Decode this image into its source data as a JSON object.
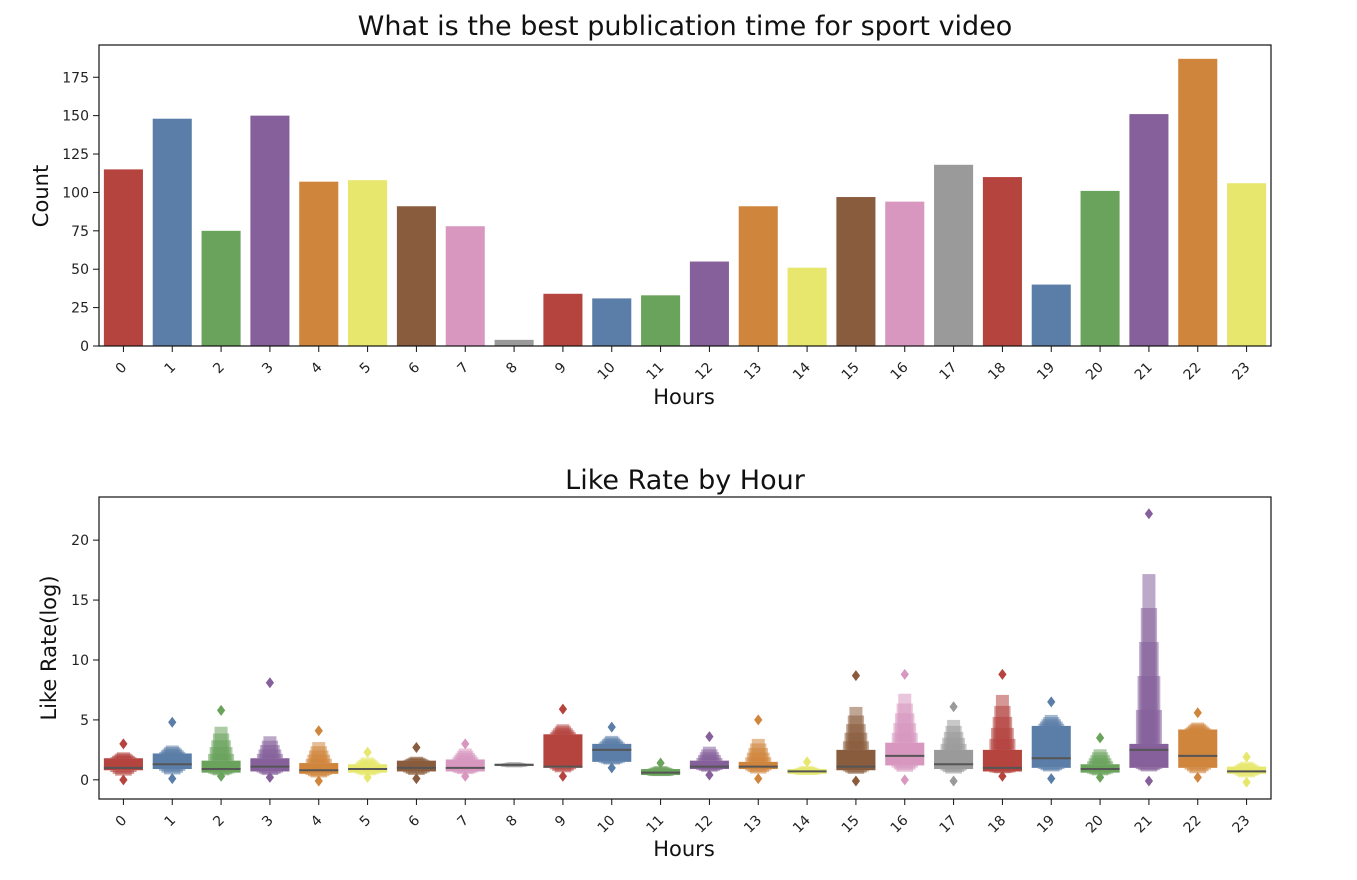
{
  "palette": [
    "#b5443f",
    "#5b7ea8",
    "#6aa35c",
    "#85609a",
    "#d0853d",
    "#e6e76c",
    "#8a5c3e",
    "#d797bf",
    "#9a9a9a"
  ],
  "chart_data": [
    {
      "type": "bar",
      "title": "What is the best publication time for sport video",
      "xlabel": "Hours",
      "ylabel": "Count",
      "categories": [
        "0",
        "1",
        "2",
        "3",
        "4",
        "5",
        "6",
        "7",
        "8",
        "9",
        "10",
        "11",
        "12",
        "13",
        "14",
        "15",
        "16",
        "17",
        "18",
        "19",
        "20",
        "21",
        "22",
        "23"
      ],
      "values": [
        115,
        148,
        75,
        150,
        107,
        108,
        91,
        78,
        4,
        34,
        31,
        33,
        55,
        91,
        51,
        97,
        94,
        118,
        110,
        40,
        101,
        151,
        187,
        106
      ],
      "ylim": [
        0,
        196
      ],
      "yticks": [
        0,
        25,
        50,
        75,
        100,
        125,
        150,
        175
      ],
      "grid": false
    },
    {
      "type": "boxen",
      "title": "Like Rate by Hour",
      "xlabel": "Hours",
      "ylabel": "Like Rate(log)",
      "categories": [
        "0",
        "1",
        "2",
        "3",
        "4",
        "5",
        "6",
        "7",
        "8",
        "9",
        "10",
        "11",
        "12",
        "13",
        "14",
        "15",
        "16",
        "17",
        "18",
        "19",
        "20",
        "21",
        "22",
        "23"
      ],
      "ylim": [
        -1.6,
        23.6
      ],
      "yticks": [
        0,
        5,
        10,
        15,
        20
      ],
      "grid": false,
      "series": [
        {
          "min": 0.2,
          "q1": 0.8,
          "median": 1.0,
          "q3": 1.8,
          "upper_whisker": 2.4,
          "outliers_high": [
            3.0
          ],
          "outliers_low": [
            0.0
          ]
        },
        {
          "min": 0.3,
          "q1": 0.9,
          "median": 1.3,
          "q3": 2.2,
          "upper_whisker": 3.0,
          "outliers_high": [
            4.8
          ],
          "outliers_low": [
            0.1
          ]
        },
        {
          "min": 0.3,
          "q1": 0.6,
          "median": 0.9,
          "q3": 1.6,
          "upper_whisker": 5.0,
          "outliers_high": [
            5.8
          ],
          "outliers_low": [
            0.3
          ]
        },
        {
          "min": 0.3,
          "q1": 0.7,
          "median": 1.1,
          "q3": 1.8,
          "upper_whisker": 4.0,
          "outliers_high": [
            8.1
          ],
          "outliers_low": [
            0.2
          ]
        },
        {
          "min": 0.1,
          "q1": 0.5,
          "median": 0.8,
          "q3": 1.4,
          "upper_whisker": 3.5,
          "outliers_high": [
            4.1
          ],
          "outliers_low": [
            -0.1
          ]
        },
        {
          "min": 0.3,
          "q1": 0.6,
          "median": 0.9,
          "q3": 1.3,
          "upper_whisker": 2.0,
          "outliers_high": [
            2.3
          ],
          "outliers_low": [
            0.2
          ]
        },
        {
          "min": 0.3,
          "q1": 0.7,
          "median": 1.0,
          "q3": 1.6,
          "upper_whisker": 2.0,
          "outliers_high": [
            2.7
          ],
          "outliers_low": [
            0.1
          ]
        },
        {
          "min": 0.4,
          "q1": 0.7,
          "median": 1.0,
          "q3": 1.7,
          "upper_whisker": 2.8,
          "outliers_high": [
            3.0
          ],
          "outliers_low": [
            0.3
          ]
        },
        {
          "min": 1.0,
          "q1": 1.15,
          "median": 1.25,
          "q3": 1.35,
          "upper_whisker": 1.5,
          "outliers_high": [],
          "outliers_low": []
        },
        {
          "min": 0.5,
          "q1": 1.0,
          "median": 1.1,
          "q3": 3.8,
          "upper_whisker": 4.8,
          "outliers_high": [
            5.9
          ],
          "outliers_low": [
            0.3
          ]
        },
        {
          "min": 1.2,
          "q1": 1.5,
          "median": 2.5,
          "q3": 3.0,
          "upper_whisker": 3.8,
          "outliers_high": [
            4.4
          ],
          "outliers_low": [
            1.0
          ]
        },
        {
          "min": 0.3,
          "q1": 0.4,
          "median": 0.6,
          "q3": 0.9,
          "upper_whisker": 1.2,
          "outliers_high": [
            1.4
          ],
          "outliers_low": []
        },
        {
          "min": 0.6,
          "q1": 0.9,
          "median": 1.1,
          "q3": 1.6,
          "upper_whisker": 3.0,
          "outliers_high": [
            3.6
          ],
          "outliers_low": [
            0.4
          ]
        },
        {
          "min": 0.4,
          "q1": 0.9,
          "median": 1.1,
          "q3": 1.5,
          "upper_whisker": 3.8,
          "outliers_high": [
            5.0
          ],
          "outliers_low": [
            0.1
          ]
        },
        {
          "min": 0.4,
          "q1": 0.5,
          "median": 0.7,
          "q3": 0.9,
          "upper_whisker": 1.2,
          "outliers_high": [
            1.5
          ],
          "outliers_low": []
        },
        {
          "min": 0.4,
          "q1": 0.8,
          "median": 1.1,
          "q3": 2.5,
          "upper_whisker": 6.8,
          "outliers_high": [
            8.7
          ],
          "outliers_low": [
            -0.1
          ]
        },
        {
          "min": 0.5,
          "q1": 1.2,
          "median": 2.0,
          "q3": 3.1,
          "upper_whisker": 8.0,
          "outliers_high": [
            8.8
          ],
          "outliers_low": [
            0.0
          ]
        },
        {
          "min": 0.4,
          "q1": 0.9,
          "median": 1.3,
          "q3": 2.5,
          "upper_whisker": 5.5,
          "outliers_high": [
            6.1
          ],
          "outliers_low": [
            -0.1
          ]
        },
        {
          "min": 0.5,
          "q1": 0.7,
          "median": 1.0,
          "q3": 2.5,
          "upper_whisker": 8.0,
          "outliers_high": [
            8.8
          ],
          "outliers_low": [
            0.3
          ]
        },
        {
          "min": 0.6,
          "q1": 1.0,
          "median": 1.8,
          "q3": 4.5,
          "upper_whisker": 5.6,
          "outliers_high": [
            6.5
          ],
          "outliers_low": [
            0.1
          ]
        },
        {
          "min": 0.3,
          "q1": 0.6,
          "median": 0.9,
          "q3": 1.3,
          "upper_whisker": 2.8,
          "outliers_high": [
            3.5
          ],
          "outliers_low": [
            0.2
          ]
        },
        {
          "min": 0.6,
          "q1": 1.0,
          "median": 2.5,
          "q3": 3.0,
          "upper_whisker": 20.0,
          "outliers_high": [
            22.2
          ],
          "outliers_low": [
            -0.1
          ]
        },
        {
          "min": 0.4,
          "q1": 1.0,
          "median": 2.0,
          "q3": 4.2,
          "upper_whisker": 4.9,
          "outliers_high": [
            5.6
          ],
          "outliers_low": [
            0.2
          ]
        },
        {
          "min": 0.1,
          "q1": 0.5,
          "median": 0.7,
          "q3": 1.1,
          "upper_whisker": 1.6,
          "outliers_high": [
            1.9
          ],
          "outliers_low": [
            -0.2
          ]
        }
      ]
    }
  ]
}
